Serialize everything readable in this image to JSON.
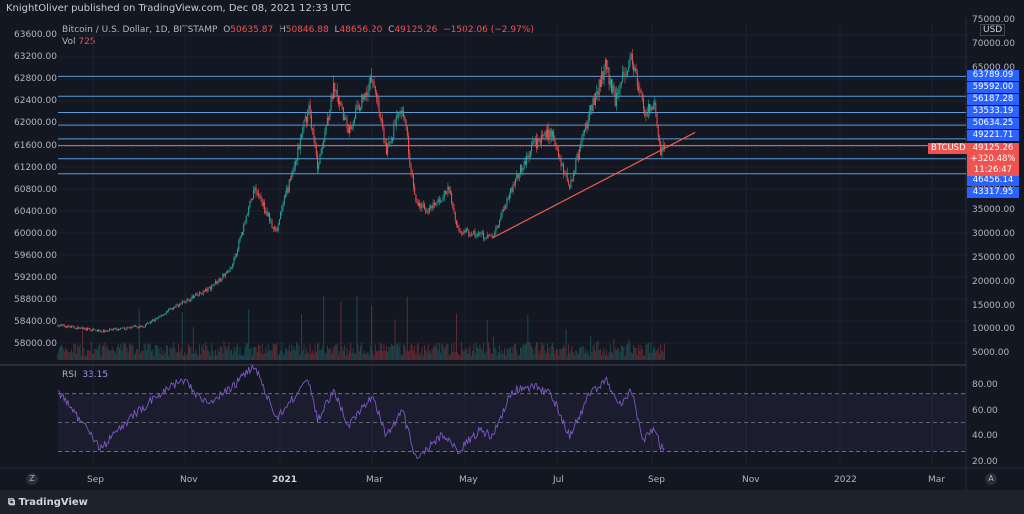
{
  "header": {
    "published": "KnightOliver published on TradingView.com, Dec 08, 2021 12:33 UTC",
    "symbol": "Bitcoin / U.S. Dollar, 1D, BITSTAMP",
    "o_label": "O",
    "o": "50635.87",
    "h_label": "H",
    "h": "50846.88",
    "l_label": "L",
    "l": "48656.20",
    "c_label": "C",
    "c": "49125.26",
    "change": "−1502.06 (−2.97%)",
    "vol_label": "Vol",
    "vol": "725",
    "rsi_label": "RSI",
    "rsi": "33.15",
    "usd": "USD",
    "ticker": "BTCUSD",
    "price_badge": "49125.26",
    "pct_badge": "+320.48%",
    "countdown_badge": "11:26:47",
    "footer": "TradingView",
    "zoom_btn": "Z",
    "auto_btn": "A"
  },
  "colors": {
    "up": "#26a69a",
    "down": "#ef5350",
    "level": "#2962ff",
    "levelLine": "#5b9bd5",
    "trend": "#f05a4a",
    "rsi": "#7e57c2",
    "bg": "#131722"
  },
  "chart_data": {
    "type": "candlestick",
    "title": "Bitcoin / U.S. Dollar, 1D, BITSTAMP",
    "left_axis_ticks": [
      "63600.00",
      "63200.00",
      "62800.00",
      "62400.00",
      "62000.00",
      "61600.00",
      "61200.00",
      "60800.00",
      "60400.00",
      "60000.00",
      "59600.00",
      "59200.00",
      "58800.00",
      "58400.00",
      "58000.00"
    ],
    "right_axis_ticks": [
      "75000.00",
      "70000.00",
      "65000.00",
      "60000.00",
      "55000.00",
      "50000.00",
      "45000.00",
      "40000.00",
      "35000.00",
      "30000.00",
      "25000.00",
      "20000.00",
      "15000.00",
      "10000.00",
      "5000.00"
    ],
    "rsi_ticks": [
      "80.00",
      "60.00",
      "40.00",
      "20.00"
    ],
    "x_labels": [
      "Sep",
      "Nov",
      "2021",
      "Mar",
      "May",
      "Jul",
      "Sep",
      "Nov",
      "2022",
      "Mar"
    ],
    "x_bold": [
      false,
      false,
      true,
      false,
      false,
      false,
      false,
      false,
      false,
      false
    ],
    "levels": [
      63789.09,
      59592.0,
      56187.28,
      53533.19,
      50634.25,
      49221.71,
      46456.14,
      43317.95
    ],
    "level_labels": [
      "63789.09",
      "59592.00",
      "56187.28",
      "53533.19",
      "50634.25",
      "49221.71",
      "46456.14",
      "43317.95"
    ],
    "ylim": [
      5000,
      75000
    ],
    "rsi_ylim": [
      20,
      85
    ],
    "rsi_bands": [
      70,
      50,
      30
    ],
    "trendline": {
      "start": [
        "2021-07-20",
        29800
      ],
      "end": [
        "2022-01-01",
        52000
      ]
    },
    "anchors": [
      [
        "2020-08-01",
        11500
      ],
      [
        "2020-09-05",
        10200
      ],
      [
        "2020-10-10",
        11300
      ],
      [
        "2020-11-05",
        15500
      ],
      [
        "2020-12-01",
        19000
      ],
      [
        "2020-12-20",
        23500
      ],
      [
        "2021-01-08",
        40500
      ],
      [
        "2021-01-25",
        31000
      ],
      [
        "2021-02-10",
        46000
      ],
      [
        "2021-02-21",
        57500
      ],
      [
        "2021-02-28",
        45000
      ],
      [
        "2021-03-13",
        61000
      ],
      [
        "2021-03-25",
        52500
      ],
      [
        "2021-04-14",
        64000
      ],
      [
        "2021-04-25",
        48000
      ],
      [
        "2021-05-08",
        58000
      ],
      [
        "2021-05-19",
        37000
      ],
      [
        "2021-05-30",
        35500
      ],
      [
        "2021-06-15",
        40000
      ],
      [
        "2021-06-22",
        31500
      ],
      [
        "2021-07-20",
        29800
      ],
      [
        "2021-08-05",
        40500
      ],
      [
        "2021-08-23",
        49500
      ],
      [
        "2021-09-06",
        52000
      ],
      [
        "2021-09-21",
        40500
      ],
      [
        "2021-10-06",
        55000
      ],
      [
        "2021-10-20",
        66000
      ],
      [
        "2021-10-28",
        59000
      ],
      [
        "2021-11-10",
        68500
      ],
      [
        "2021-11-20",
        56500
      ],
      [
        "2021-11-30",
        57000
      ],
      [
        "2021-12-04",
        47000
      ],
      [
        "2021-12-07",
        49125
      ]
    ],
    "rsi_anchors": [
      [
        "2020-08-01",
        72
      ],
      [
        "2020-09-05",
        32
      ],
      [
        "2020-10-01",
        55
      ],
      [
        "2020-10-20",
        68
      ],
      [
        "2020-11-10",
        80
      ],
      [
        "2020-12-01",
        62
      ],
      [
        "2020-12-25",
        78
      ],
      [
        "2021-01-08",
        90
      ],
      [
        "2021-01-25",
        52
      ],
      [
        "2021-02-20",
        80
      ],
      [
        "2021-02-28",
        52
      ],
      [
        "2021-03-13",
        72
      ],
      [
        "2021-03-25",
        48
      ],
      [
        "2021-04-14",
        68
      ],
      [
        "2021-04-25",
        40
      ],
      [
        "2021-05-08",
        58
      ],
      [
        "2021-05-19",
        25
      ],
      [
        "2021-06-10",
        42
      ],
      [
        "2021-06-22",
        30
      ],
      [
        "2021-07-10",
        45
      ],
      [
        "2021-07-20",
        40
      ],
      [
        "2021-08-05",
        72
      ],
      [
        "2021-08-23",
        75
      ],
      [
        "2021-09-06",
        70
      ],
      [
        "2021-09-21",
        40
      ],
      [
        "2021-10-06",
        68
      ],
      [
        "2021-10-20",
        80
      ],
      [
        "2021-11-01",
        62
      ],
      [
        "2021-11-10",
        72
      ],
      [
        "2021-11-20",
        38
      ],
      [
        "2021-11-30",
        46
      ],
      [
        "2021-12-04",
        33
      ],
      [
        "2021-12-07",
        33
      ]
    ]
  }
}
